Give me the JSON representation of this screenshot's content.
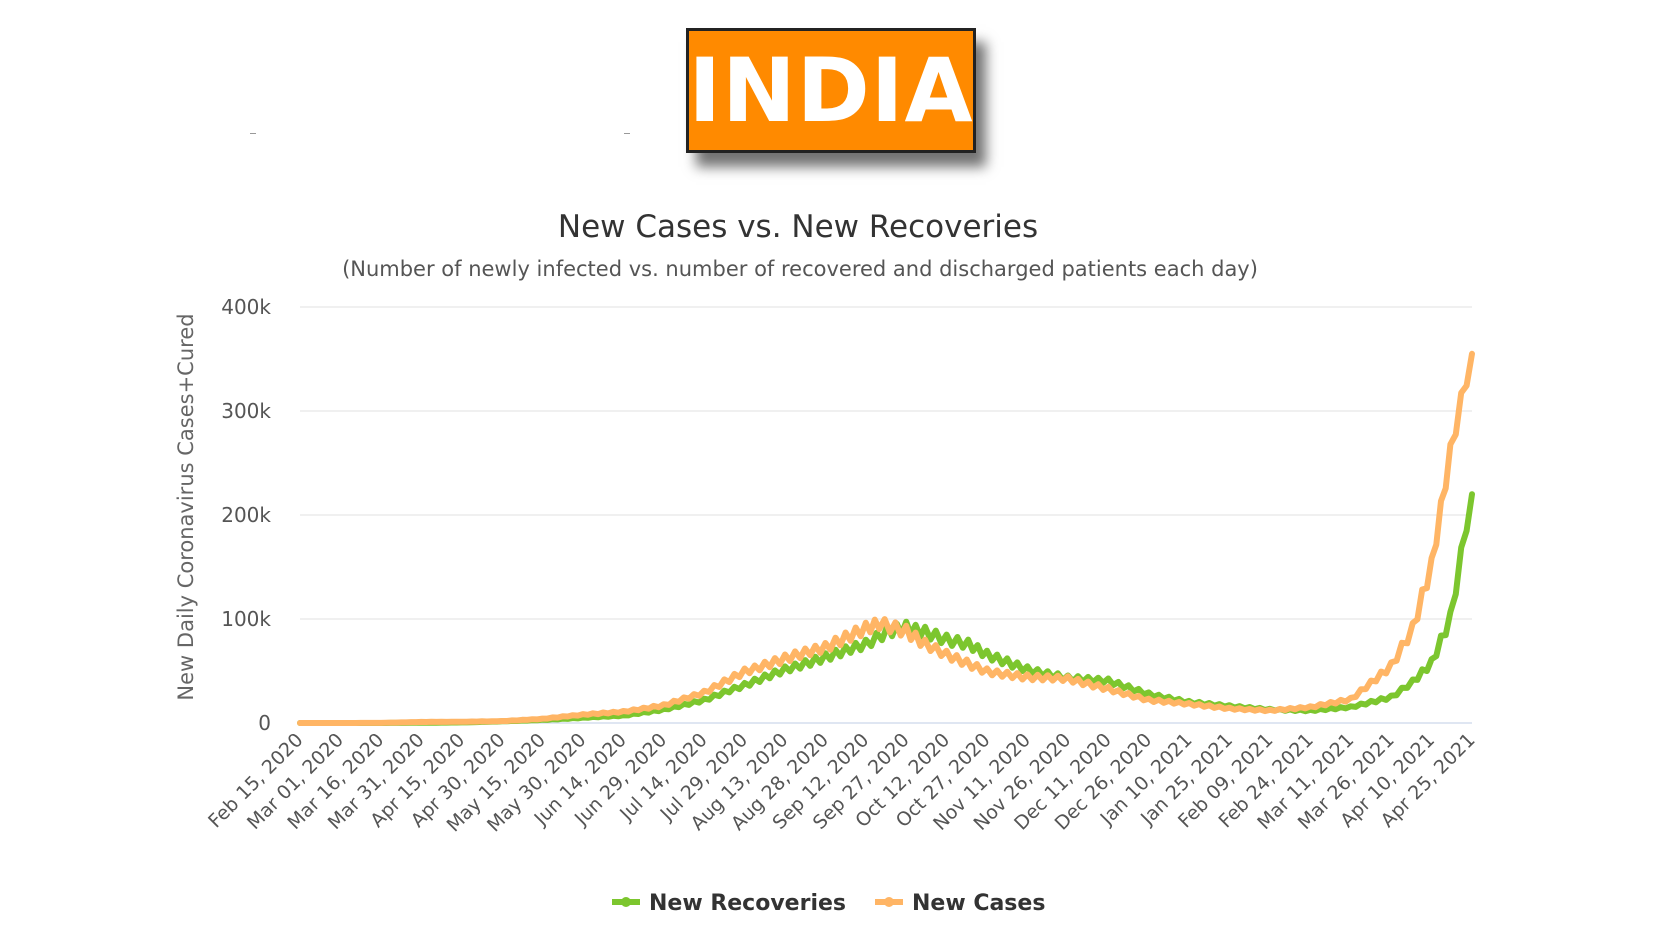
{
  "header": {
    "badge_text": "INDIA"
  },
  "chart_data": {
    "type": "line",
    "title": "New Cases vs. New Recoveries",
    "subtitle": "(Number of newly infected vs. number of recovered and discharged patients each day)",
    "ylabel": "New Daily Coronavirus Cases+Cured",
    "ylim": [
      0,
      400000
    ],
    "yticks": [
      0,
      100000,
      200000,
      300000,
      400000
    ],
    "ytick_labels": [
      "0",
      "100k",
      "200k",
      "300k",
      "400k"
    ],
    "grid": true,
    "legend_position": "bottom",
    "categories": [
      "Feb 15, 2020",
      "Mar 01, 2020",
      "Mar 16, 2020",
      "Mar 31, 2020",
      "Apr 15, 2020",
      "Apr 30, 2020",
      "May 15, 2020",
      "May 30, 2020",
      "Jun 14, 2020",
      "Jun 29, 2020",
      "Jul 14, 2020",
      "Jul 29, 2020",
      "Aug 13, 2020",
      "Aug 28, 2020",
      "Sep 12, 2020",
      "Sep 27, 2020",
      "Oct 12, 2020",
      "Oct 27, 2020",
      "Nov 11, 2020",
      "Nov 26, 2020",
      "Dec 11, 2020",
      "Dec 26, 2020",
      "Jan 10, 2021",
      "Jan 25, 2021",
      "Feb 09, 2021",
      "Feb 24, 2021",
      "Mar 11, 2021",
      "Mar 26, 2021",
      "Apr 10, 2021",
      "Apr 25, 2021"
    ],
    "series": [
      {
        "name": "New Recoveries",
        "color": "#7cc62e",
        "x": [
          "Feb 15, 2020",
          "Mar 01, 2020",
          "Mar 16, 2020",
          "Mar 31, 2020",
          "Apr 15, 2020",
          "Apr 30, 2020",
          "May 15, 2020",
          "May 30, 2020",
          "Jun 14, 2020",
          "Jun 29, 2020",
          "Jul 14, 2020",
          "Jul 29, 2020",
          "Aug 13, 2020",
          "Aug 28, 2020",
          "Sep 12, 2020",
          "Sep 20, 2020",
          "Sep 27, 2020",
          "Oct 04, 2020",
          "Oct 12, 2020",
          "Oct 20, 2020",
          "Oct 27, 2020",
          "Nov 11, 2020",
          "Nov 26, 2020",
          "Dec 11, 2020",
          "Dec 26, 2020",
          "Jan 10, 2021",
          "Jan 25, 2021",
          "Feb 09, 2021",
          "Feb 24, 2021",
          "Mar 11, 2021",
          "Mar 26, 2021",
          "Apr 03, 2021",
          "Apr 10, 2021",
          "Apr 17, 2021",
          "Apr 25, 2021"
        ],
        "values": [
          0,
          0,
          0,
          200,
          500,
          1500,
          3000,
          5000,
          7000,
          13000,
          22000,
          36000,
          52000,
          63000,
          75000,
          88000,
          93000,
          88000,
          80000,
          75000,
          65000,
          52000,
          43000,
          40000,
          28000,
          20000,
          16000,
          13000,
          12000,
          15000,
          25000,
          40000,
          58000,
          100000,
          220000
        ]
      },
      {
        "name": "New Cases",
        "color": "#ffb565",
        "x": [
          "Feb 15, 2020",
          "Mar 01, 2020",
          "Mar 16, 2020",
          "Mar 31, 2020",
          "Apr 15, 2020",
          "Apr 30, 2020",
          "May 15, 2020",
          "May 30, 2020",
          "Jun 14, 2020",
          "Jun 29, 2020",
          "Jul 14, 2020",
          "Jul 29, 2020",
          "Aug 13, 2020",
          "Aug 28, 2020",
          "Sep 12, 2020",
          "Sep 17, 2020",
          "Sep 27, 2020",
          "Oct 04, 2020",
          "Oct 12, 2020",
          "Oct 27, 2020",
          "Nov 11, 2020",
          "Nov 26, 2020",
          "Dec 11, 2020",
          "Dec 26, 2020",
          "Jan 10, 2021",
          "Jan 25, 2021",
          "Feb 09, 2021",
          "Feb 24, 2021",
          "Mar 11, 2021",
          "Mar 26, 2021",
          "Apr 03, 2021",
          "Apr 10, 2021",
          "Apr 17, 2021",
          "Apr 21, 2021",
          "Apr 25, 2021"
        ],
        "values": [
          0,
          0,
          100,
          1000,
          1200,
          1800,
          4000,
          8000,
          11000,
          17000,
          29000,
          50000,
          62000,
          72000,
          92000,
          97000,
          88000,
          75000,
          65000,
          50000,
          44000,
          42000,
          33000,
          22000,
          18000,
          14000,
          12000,
          15000,
          23000,
          55000,
          90000,
          150000,
          260000,
          310000,
          355000
        ]
      }
    ]
  }
}
